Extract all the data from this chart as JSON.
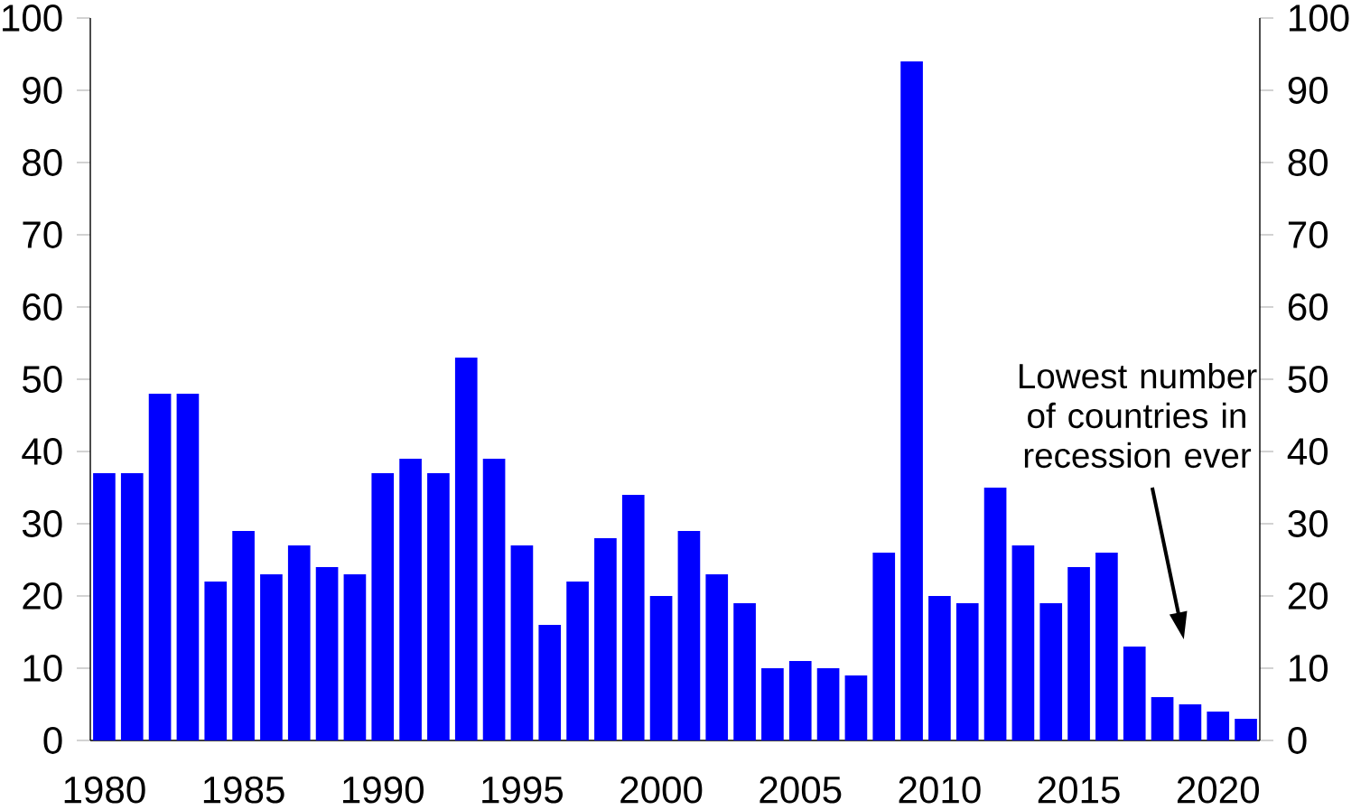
{
  "chart_data": {
    "type": "bar",
    "categories": [
      "1980",
      null,
      null,
      null,
      null,
      "1985",
      null,
      null,
      null,
      null,
      "1990",
      null,
      null,
      null,
      null,
      "1995",
      null,
      null,
      null,
      null,
      "2000",
      null,
      null,
      null,
      null,
      "2005",
      null,
      null,
      null,
      null,
      "2010",
      null,
      null,
      null,
      null,
      "2015",
      null,
      null,
      null,
      null,
      "2020",
      null
    ],
    "values": [
      37,
      37,
      48,
      48,
      22,
      29,
      23,
      27,
      24,
      23,
      37,
      39,
      37,
      53,
      39,
      27,
      16,
      22,
      28,
      34,
      20,
      29,
      23,
      19,
      10,
      11,
      10,
      9,
      26,
      94,
      20,
      19,
      35,
      27,
      19,
      24,
      26,
      13,
      6,
      5,
      4,
      3
    ],
    "color": "#0000ff",
    "ylim": [
      0,
      100
    ],
    "yticks": [
      0,
      10,
      20,
      30,
      40,
      50,
      60,
      70,
      80,
      90,
      100
    ],
    "y2lim": [
      0,
      100
    ],
    "y2ticks": [
      0,
      10,
      20,
      30,
      40,
      50,
      60,
      70,
      80,
      90,
      100
    ],
    "grid": false,
    "annotations": [
      "Lowest number of countries in recession ever"
    ]
  }
}
